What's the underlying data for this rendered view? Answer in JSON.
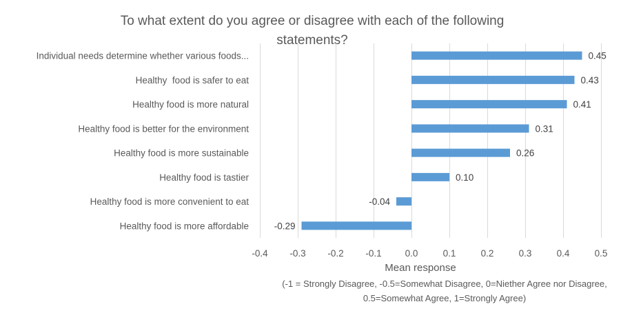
{
  "chart_data": {
    "type": "bar",
    "orientation": "horizontal",
    "title": "To what extent do you agree or disagree with each of the following statements?",
    "title_lines": [
      "To what extent do you agree or disagree with each of the following",
      "statements?"
    ],
    "categories": [
      "Individual needs determine whether various foods...",
      "Healthy  food is safer to eat",
      "Healthy food is more natural",
      "Healthy food is better for the environment",
      "Healthy food is more sustainable",
      "Healthy food is tastier",
      "Healthy food is more convenient to eat",
      "Healthy food is more affordable"
    ],
    "values": [
      0.45,
      0.43,
      0.41,
      0.31,
      0.26,
      0.1,
      -0.04,
      -0.29
    ],
    "data_labels": [
      "0.45",
      "0.43",
      "0.41",
      "0.31",
      "0.26",
      "0.10",
      "-0.04",
      "-0.29"
    ],
    "xlabel": "Mean response",
    "xlabel_note_lines": [
      "(-1 = Strongly Disagree, -0.5=Somewhat Disagree, 0=Niether Agree nor Disagree,",
      "0.5=Somewhat Agree, 1=Strongly Agree)"
    ],
    "ylabel": "",
    "xlim": [
      -0.4,
      0.5
    ],
    "xticks": [
      -0.4,
      -0.3,
      -0.2,
      -0.1,
      0.0,
      0.1,
      0.2,
      0.3,
      0.4,
      0.5
    ],
    "xtick_labels": [
      "-0.4",
      "-0.3",
      "-0.2",
      "-0.1",
      "0.0",
      "0.1",
      "0.2",
      "0.3",
      "0.4",
      "0.5"
    ],
    "grid": "vertical",
    "legend": "none",
    "bar_color": "#5B9BD5"
  }
}
